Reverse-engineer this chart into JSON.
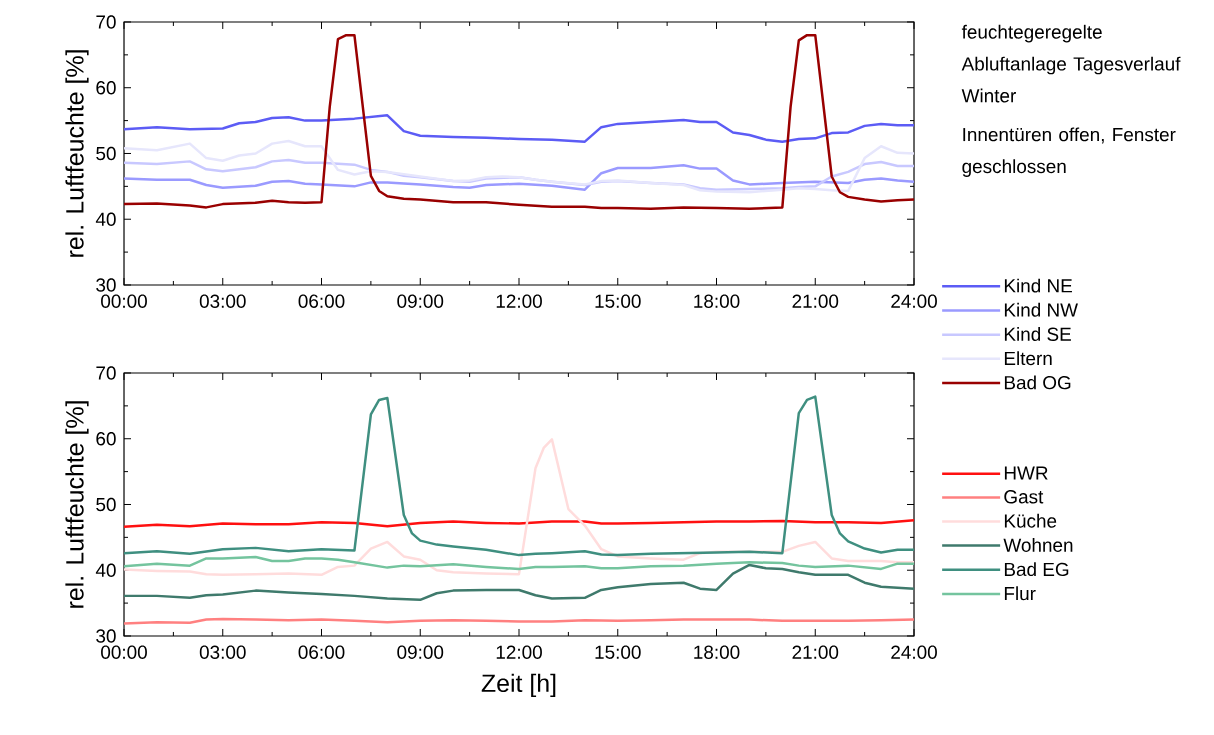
{
  "chart_data": [
    {
      "type": "line",
      "ylabel": "rel. Luftfeuchte [%]",
      "xlim": [
        0,
        24
      ],
      "ylim": [
        30,
        70
      ],
      "xticks": [
        {
          "value": 0,
          "label": "00:00"
        },
        {
          "value": 3,
          "label": "03:00"
        },
        {
          "value": 6,
          "label": "06:00"
        },
        {
          "value": 9,
          "label": "09:00"
        },
        {
          "value": 12,
          "label": "12:00"
        },
        {
          "value": 15,
          "label": "15:00"
        },
        {
          "value": 18,
          "label": "18:00"
        },
        {
          "value": 21,
          "label": "21:00"
        },
        {
          "value": 24,
          "label": "24:00"
        }
      ],
      "yticks": [
        30,
        40,
        50,
        60,
        70
      ],
      "legend": "right",
      "annotations": [
        "feuchtegeregelte Abluftanlage Tagesverlauf Winter",
        "Innentüren offen, Fenster geschlossen"
      ],
      "series": [
        {
          "name": "Kind NE",
          "color": "#5c5cf5",
          "x": [
            0,
            1,
            2,
            3,
            3.5,
            4,
            4.5,
            5,
            5.5,
            6,
            7,
            8,
            8.5,
            9,
            10,
            11,
            12,
            13,
            14,
            14.5,
            15,
            16,
            17,
            17.5,
            18,
            18.5,
            19,
            19.5,
            20,
            20.5,
            21,
            21.5,
            22,
            22.5,
            23,
            23.5,
            24
          ],
          "values": [
            53.7,
            54.0,
            53.7,
            53.8,
            54.6,
            54.8,
            55.4,
            55.5,
            55.0,
            55.0,
            55.3,
            55.8,
            53.4,
            52.7,
            52.5,
            52.4,
            52.2,
            52.1,
            51.8,
            54.0,
            54.5,
            54.8,
            55.1,
            54.8,
            54.8,
            53.2,
            52.8,
            52.1,
            51.8,
            52.2,
            52.3,
            53.1,
            53.2,
            54.2,
            54.5,
            54.3,
            54.3
          ]
        },
        {
          "name": "Kind NW",
          "color": "#9a9aff",
          "x": [
            0,
            1,
            2,
            2.5,
            3,
            4,
            4.5,
            5,
            5.5,
            6,
            7,
            7.5,
            8,
            9,
            10,
            10.5,
            11,
            12,
            13,
            14,
            14.5,
            15,
            16,
            17,
            17.5,
            18,
            18.5,
            19,
            20,
            21,
            22,
            22.5,
            23,
            23.5,
            24
          ],
          "values": [
            46.2,
            46.0,
            46.0,
            45.2,
            44.8,
            45.1,
            45.7,
            45.8,
            45.4,
            45.3,
            45.0,
            45.6,
            45.6,
            45.3,
            44.9,
            44.8,
            45.2,
            45.4,
            45.1,
            44.5,
            47.0,
            47.8,
            47.8,
            48.2,
            47.7,
            47.7,
            45.9,
            45.3,
            45.5,
            45.7,
            45.5,
            46.0,
            46.2,
            45.9,
            45.7
          ]
        },
        {
          "name": "Kind SE",
          "color": "#c8c8ff",
          "x": [
            0,
            1,
            2,
            2.5,
            3,
            4,
            4.5,
            5,
            5.5,
            6,
            7,
            7.5,
            8,
            8.5,
            9,
            10,
            10.5,
            11,
            12,
            12.5,
            13,
            14,
            14.5,
            15,
            16,
            17,
            17.5,
            18,
            19,
            20,
            20.5,
            21,
            21.5,
            22,
            22.5,
            23,
            23.5,
            24
          ],
          "values": [
            48.6,
            48.4,
            48.8,
            47.6,
            47.3,
            47.9,
            48.8,
            49.0,
            48.6,
            48.6,
            48.3,
            47.5,
            47.2,
            46.6,
            46.4,
            45.8,
            45.7,
            46.2,
            46.4,
            46.0,
            45.7,
            45.2,
            45.7,
            45.8,
            45.5,
            45.3,
            44.7,
            44.5,
            44.6,
            44.7,
            44.9,
            45.0,
            46.5,
            47.2,
            48.4,
            48.7,
            48.1,
            48.1
          ]
        },
        {
          "name": "Eltern",
          "color": "#e6e6fc",
          "x": [
            0,
            1,
            2,
            2.5,
            3,
            3.5,
            4,
            4.5,
            5,
            5.5,
            6,
            6.5,
            7,
            7.5,
            8,
            9,
            10,
            10.5,
            11,
            11.5,
            12,
            12.5,
            13,
            14,
            14.5,
            15,
            16,
            17,
            17.5,
            18,
            19,
            20,
            20.5,
            21,
            21.5,
            22,
            22.5,
            23,
            23.5,
            24
          ],
          "values": [
            50.8,
            50.5,
            51.5,
            49.3,
            48.9,
            49.7,
            50.0,
            51.5,
            51.9,
            51.1,
            51.1,
            47.5,
            46.8,
            47.3,
            47.2,
            46.5,
            45.8,
            45.9,
            46.4,
            46.5,
            46.4,
            46.0,
            45.7,
            45.3,
            45.8,
            45.9,
            45.5,
            45.2,
            44.4,
            44.2,
            44.1,
            44.5,
            44.7,
            44.6,
            44.4,
            44.3,
            49.3,
            51.1,
            50.1,
            50.0
          ]
        },
        {
          "name": "Bad OG",
          "color": "#990000",
          "x": [
            0,
            1,
            2,
            2.5,
            3,
            4,
            4.5,
            5,
            5.5,
            6,
            6.25,
            6.5,
            6.75,
            7,
            7.5,
            7.75,
            8,
            8.5,
            9,
            10,
            11,
            12,
            13,
            14,
            14.5,
            15,
            16,
            17,
            18,
            19,
            20,
            20.25,
            20.5,
            20.75,
            21,
            21.5,
            21.75,
            22,
            22.5,
            23,
            23.5,
            24
          ],
          "values": [
            42.3,
            42.4,
            42.1,
            41.8,
            42.3,
            42.5,
            42.8,
            42.6,
            42.5,
            42.6,
            57.1,
            67.4,
            68.0,
            68.0,
            46.6,
            44.3,
            43.5,
            43.1,
            43.0,
            42.6,
            42.6,
            42.2,
            41.9,
            41.9,
            41.7,
            41.7,
            41.6,
            41.8,
            41.7,
            41.6,
            41.8,
            57.1,
            67.2,
            68.0,
            68.0,
            46.5,
            44.1,
            43.4,
            43.0,
            42.7,
            42.9,
            43.0
          ]
        }
      ]
    },
    {
      "type": "line",
      "ylabel": "rel. Luftfeuchte [%]",
      "xlabel": "Zeit [h]",
      "xlim": [
        0,
        24
      ],
      "ylim": [
        30,
        70
      ],
      "xticks": [
        {
          "value": 0,
          "label": "00:00"
        },
        {
          "value": 3,
          "label": "03:00"
        },
        {
          "value": 6,
          "label": "06:00"
        },
        {
          "value": 9,
          "label": "09:00"
        },
        {
          "value": 12,
          "label": "12:00"
        },
        {
          "value": 15,
          "label": "15:00"
        },
        {
          "value": 18,
          "label": "18:00"
        },
        {
          "value": 21,
          "label": "21:00"
        },
        {
          "value": 24,
          "label": "24:00"
        }
      ],
      "yticks": [
        30,
        40,
        50,
        60,
        70
      ],
      "legend": "right",
      "series": [
        {
          "name": "HWR",
          "color": "#ff1010",
          "x": [
            0,
            1,
            2,
            3,
            4,
            5,
            6,
            7,
            8,
            9,
            10,
            11,
            12,
            13,
            14,
            14.5,
            15,
            16,
            17,
            18,
            19,
            20,
            21,
            22,
            23,
            24
          ],
          "values": [
            46.6,
            46.9,
            46.7,
            47.1,
            47.0,
            47.0,
            47.3,
            47.2,
            46.7,
            47.2,
            47.4,
            47.2,
            47.1,
            47.4,
            47.4,
            47.1,
            47.1,
            47.2,
            47.3,
            47.4,
            47.4,
            47.5,
            47.3,
            47.3,
            47.2,
            47.6
          ]
        },
        {
          "name": "Gast",
          "color": "#ff8080",
          "x": [
            0,
            1,
            2,
            2.5,
            3,
            4,
            5,
            6,
            7,
            8,
            9,
            10,
            11,
            12,
            13,
            14,
            15,
            16,
            17,
            18,
            19,
            20,
            21,
            22,
            23,
            24
          ],
          "values": [
            31.9,
            32.1,
            32.0,
            32.5,
            32.6,
            32.5,
            32.4,
            32.5,
            32.3,
            32.1,
            32.3,
            32.4,
            32.3,
            32.2,
            32.2,
            32.4,
            32.3,
            32.4,
            32.5,
            32.5,
            32.5,
            32.3,
            32.3,
            32.3,
            32.4,
            32.5
          ]
        },
        {
          "name": "Küche",
          "color": "#ffdcdc",
          "x": [
            0,
            1,
            2,
            2.5,
            3,
            4,
            5,
            6,
            6.5,
            7,
            7.5,
            8,
            8.5,
            9,
            9.5,
            10,
            11,
            12,
            12.5,
            12.75,
            13,
            13.5,
            14,
            14.5,
            15,
            16,
            17,
            17.5,
            18,
            19,
            20,
            20.5,
            21,
            21.5,
            22,
            23,
            23.5,
            24
          ],
          "values": [
            40.1,
            39.9,
            39.8,
            39.4,
            39.3,
            39.4,
            39.5,
            39.3,
            40.5,
            40.7,
            43.3,
            44.3,
            42.1,
            41.6,
            40.0,
            39.7,
            39.5,
            39.4,
            55.5,
            58.6,
            59.9,
            49.3,
            46.8,
            43.2,
            42.1,
            41.8,
            41.6,
            42.6,
            42.8,
            42.8,
            42.8,
            43.7,
            44.3,
            41.8,
            41.4,
            41.4,
            41.2,
            41.2
          ]
        },
        {
          "name": "Wohnen",
          "color": "#3f7a6c",
          "x": [
            0,
            1,
            2,
            2.5,
            3,
            4,
            5,
            6,
            7,
            8,
            9,
            9.5,
            10,
            11,
            12,
            12.5,
            13,
            14,
            14.5,
            15,
            16,
            17,
            17.5,
            18,
            18.5,
            19,
            19.5,
            20,
            20.5,
            21,
            22,
            22.5,
            23,
            24
          ],
          "values": [
            36.1,
            36.1,
            35.8,
            36.2,
            36.3,
            36.9,
            36.6,
            36.4,
            36.1,
            35.7,
            35.5,
            36.5,
            36.9,
            37.0,
            37.0,
            36.2,
            35.7,
            35.8,
            37.0,
            37.4,
            37.9,
            38.1,
            37.2,
            37.0,
            39.5,
            40.8,
            40.3,
            40.2,
            39.7,
            39.3,
            39.3,
            38.1,
            37.5,
            37.2
          ]
        },
        {
          "name": "Bad EG",
          "color": "#3f8f80",
          "x": [
            0,
            1,
            2,
            3,
            4,
            5,
            6,
            7,
            7.5,
            7.75,
            8,
            8.5,
            8.75,
            9,
            9.5,
            10,
            11,
            12,
            12.5,
            13,
            14,
            14.5,
            15,
            16,
            17,
            18,
            19,
            20,
            20.5,
            20.75,
            21,
            21.5,
            21.75,
            22,
            22.5,
            23,
            23.5,
            24
          ],
          "values": [
            42.6,
            42.9,
            42.5,
            43.2,
            43.4,
            42.9,
            43.2,
            43.0,
            63.7,
            65.9,
            66.2,
            48.4,
            45.6,
            44.5,
            43.9,
            43.6,
            43.1,
            42.3,
            42.5,
            42.6,
            42.9,
            42.4,
            42.3,
            42.5,
            42.6,
            42.7,
            42.8,
            42.6,
            63.9,
            65.9,
            66.4,
            48.4,
            45.6,
            44.4,
            43.3,
            42.7,
            43.1,
            43.1
          ]
        },
        {
          "name": "Flur",
          "color": "#74c49e",
          "x": [
            0,
            1,
            2,
            2.5,
            3,
            4,
            4.5,
            5,
            5.5,
            6,
            6.5,
            7,
            8,
            8.5,
            9,
            10,
            11,
            12,
            12.5,
            13,
            14,
            14.5,
            15,
            16,
            17,
            18,
            19,
            20,
            20.5,
            21,
            22,
            23,
            23.5,
            24
          ],
          "values": [
            40.6,
            41.0,
            40.7,
            41.8,
            41.8,
            42.0,
            41.4,
            41.4,
            41.8,
            41.8,
            41.6,
            41.2,
            40.4,
            40.7,
            40.6,
            40.9,
            40.5,
            40.2,
            40.5,
            40.5,
            40.6,
            40.3,
            40.3,
            40.6,
            40.7,
            41.0,
            41.2,
            41.1,
            40.7,
            40.5,
            40.7,
            40.2,
            41.0,
            41.0
          ]
        }
      ]
    }
  ]
}
